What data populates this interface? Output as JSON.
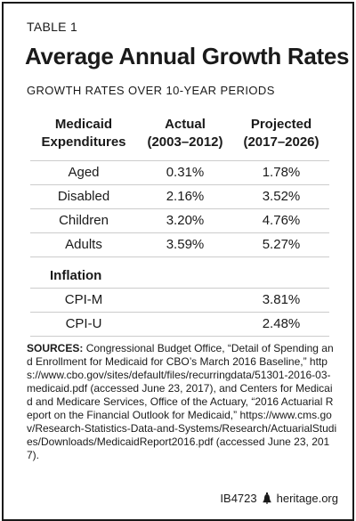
{
  "table_label": "TABLE 1",
  "title": "Average Annual Growth Rates",
  "subtitle": "GROWTH RATES OVER 10-YEAR PERIODS",
  "headers": {
    "label_line1": "Medicaid",
    "label_line2": "Expenditures",
    "actual_line1": "Actual",
    "actual_line2": "(2003–2012)",
    "projected_line1": "Projected",
    "projected_line2": "(2017–2026)"
  },
  "rows": [
    {
      "label": "Aged",
      "actual": "0.31%",
      "projected": "1.78%"
    },
    {
      "label": "Disabled",
      "actual": "2.16%",
      "projected": "3.52%"
    },
    {
      "label": "Children",
      "actual": "3.20%",
      "projected": "4.76%"
    },
    {
      "label": "Adults",
      "actual": "3.59%",
      "projected": "5.27%"
    }
  ],
  "inflation_heading": "Inflation",
  "inflation_rows": [
    {
      "label": "CPI-M",
      "actual": "",
      "projected": "3.81%"
    },
    {
      "label": "CPI-U",
      "actual": "",
      "projected": "2.48%"
    }
  ],
  "sources_label": "SOURCES:",
  "sources_text": "Congressional Budget Office, “Detail of Spending and Enrollment for Medicaid for CBO’s March 2016 Baseline,” https://www.cbo.gov/sites/default/files/recurringdata/51301-2016-03-medicaid.pdf (accessed June 23, 2017), and Centers for Medicaid and Medicare Services, Office of the Actuary, “2016 Actuarial Report on the Financial Outlook for Medicaid,” https://www.cms.gov/Research-Statistics-Data-and-Systems/Research/ActuarialStudies/Downloads/MedicaidReport2016.pdf (accessed June 23, 2017).",
  "footer_id": "IB4723",
  "footer_site": "heritage.org",
  "footer_icon": "liberty-bell-icon"
}
